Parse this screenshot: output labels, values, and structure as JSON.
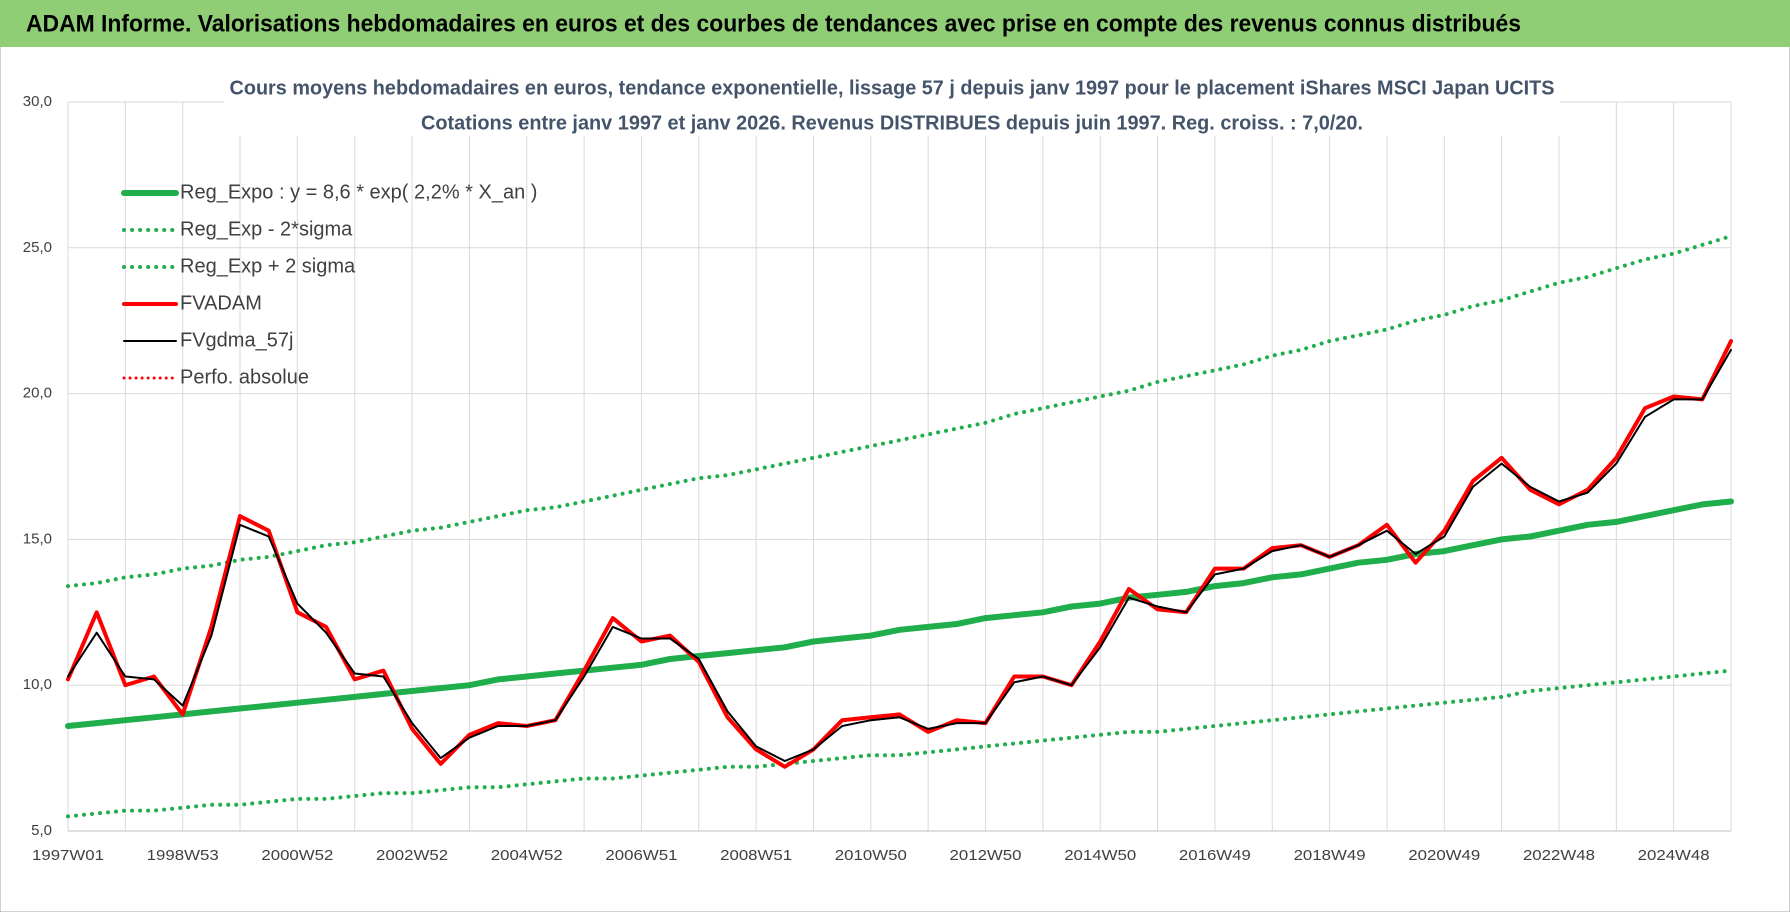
{
  "header": {
    "title": "ADAM Informe. Valorisations hebdomadaires en euros et des courbes de tendances avec prise en compte des revenus connus distribués"
  },
  "chart_data": {
    "type": "line",
    "title": "Cours moyens hebdomadaires en euros, tendance exponentielle, lissage 57 j depuis janv 1997 pour le placement iShares MSCI Japan UCITS",
    "subtitle": "Cotations entre janv 1997 et janv 2026. Revenus DISTRIBUES depuis juin 1997. Reg. croiss. : 7,0/20.",
    "categories": [
      "1997W01",
      null,
      null,
      null,
      "1998W53",
      null,
      null,
      null,
      "2000W52",
      null,
      null,
      null,
      "2002W52",
      null,
      null,
      null,
      "2004W52",
      null,
      null,
      null,
      "2006W51",
      null,
      null,
      null,
      "2008W51",
      null,
      null,
      null,
      "2010W50",
      null,
      null,
      null,
      "2012W50",
      null,
      null,
      null,
      "2014W50",
      null,
      null,
      null,
      "2016W49",
      null,
      null,
      null,
      "2018W49",
      null,
      null,
      null,
      "2020W49",
      null,
      null,
      null,
      "2022W48",
      null,
      null,
      null,
      "2024W48",
      null,
      null
    ],
    "ylim": [
      5,
      30
    ],
    "yticks": [
      {
        "value": 5,
        "label": "5,0"
      },
      {
        "value": 10,
        "label": "10,0"
      },
      {
        "value": 15,
        "label": "15,0"
      },
      {
        "value": 20,
        "label": "20,0"
      },
      {
        "value": 25,
        "label": "25,0"
      },
      {
        "value": 30,
        "label": "30,0"
      }
    ],
    "grid": true,
    "legend": "top-left",
    "series": [
      {
        "name": "Reg_Expo : y = 8,6 * exp( 2,2% *  X_an )",
        "color": "#1fae4b",
        "style": "solid",
        "width": 6,
        "values": [
          8.6,
          8.7,
          8.8,
          8.9,
          9.0,
          9.1,
          9.2,
          9.3,
          9.4,
          9.5,
          9.6,
          9.7,
          9.8,
          9.9,
          10.0,
          10.2,
          10.3,
          10.4,
          10.5,
          10.6,
          10.7,
          10.9,
          11.0,
          11.1,
          11.2,
          11.3,
          11.5,
          11.6,
          11.7,
          11.9,
          12.0,
          12.1,
          12.3,
          12.4,
          12.5,
          12.7,
          12.8,
          13.0,
          13.1,
          13.2,
          13.4,
          13.5,
          13.7,
          13.8,
          14.0,
          14.2,
          14.3,
          14.5,
          14.6,
          14.8,
          15.0,
          15.1,
          15.3,
          15.5,
          15.6,
          15.8,
          16.0,
          16.2,
          16.3
        ]
      },
      {
        "name": "Reg_Exp - 2*sigma",
        "color": "#1fae4b",
        "style": "dotted",
        "width": 4,
        "values": [
          5.5,
          5.6,
          5.7,
          5.7,
          5.8,
          5.9,
          5.9,
          6.0,
          6.1,
          6.1,
          6.2,
          6.3,
          6.3,
          6.4,
          6.5,
          6.5,
          6.6,
          6.7,
          6.8,
          6.8,
          6.9,
          7.0,
          7.1,
          7.2,
          7.2,
          7.3,
          7.4,
          7.5,
          7.6,
          7.6,
          7.7,
          7.8,
          7.9,
          8.0,
          8.1,
          8.2,
          8.3,
          8.4,
          8.4,
          8.5,
          8.6,
          8.7,
          8.8,
          8.9,
          9.0,
          9.1,
          9.2,
          9.3,
          9.4,
          9.5,
          9.6,
          9.8,
          9.9,
          10.0,
          10.1,
          10.2,
          10.3,
          10.4,
          10.5
        ]
      },
      {
        "name": "Reg_Exp + 2 sigma",
        "color": "#1fae4b",
        "style": "dotted",
        "width": 4,
        "values": [
          13.4,
          13.5,
          13.7,
          13.8,
          14.0,
          14.1,
          14.3,
          14.4,
          14.6,
          14.8,
          14.9,
          15.1,
          15.3,
          15.4,
          15.6,
          15.8,
          16.0,
          16.1,
          16.3,
          16.5,
          16.7,
          16.9,
          17.1,
          17.2,
          17.4,
          17.6,
          17.8,
          18.0,
          18.2,
          18.4,
          18.6,
          18.8,
          19.0,
          19.3,
          19.5,
          19.7,
          19.9,
          20.1,
          20.4,
          20.6,
          20.8,
          21.0,
          21.3,
          21.5,
          21.8,
          22.0,
          22.2,
          22.5,
          22.7,
          23.0,
          23.2,
          23.5,
          23.8,
          24.0,
          24.3,
          24.6,
          24.8,
          25.1,
          25.4
        ]
      },
      {
        "name": "Perfo. absolue",
        "color": "#ff0000",
        "style": "dotted",
        "width": 3,
        "values": [
          10.2,
          12.5,
          10.0,
          10.3,
          9.0,
          12.0,
          15.8,
          15.3,
          12.5,
          12.0,
          10.2,
          10.5,
          8.5,
          7.3,
          8.3,
          8.7,
          8.6,
          8.8,
          10.5,
          12.3,
          11.5,
          11.7,
          10.8,
          8.9,
          7.8,
          7.2,
          7.8,
          8.8,
          8.9,
          9.0,
          8.4,
          8.8,
          8.7,
          10.3,
          10.3,
          10.0,
          11.5,
          13.3,
          12.6,
          12.5,
          14.0,
          14.0,
          14.7,
          14.8,
          14.4,
          14.8,
          15.5,
          14.2,
          15.3,
          17.0,
          17.8,
          16.7,
          16.2,
          16.7,
          17.8,
          19.5,
          19.9,
          19.8,
          21.8
        ]
      },
      {
        "name": "FVADAM",
        "color": "#ff0000",
        "style": "solid",
        "width": 4,
        "values": [
          10.2,
          12.5,
          10.0,
          10.3,
          9.0,
          12.0,
          15.8,
          15.3,
          12.5,
          12.0,
          10.2,
          10.5,
          8.5,
          7.3,
          8.3,
          8.7,
          8.6,
          8.8,
          10.5,
          12.3,
          11.5,
          11.7,
          10.8,
          8.9,
          7.8,
          7.2,
          7.8,
          8.8,
          8.9,
          9.0,
          8.4,
          8.8,
          8.7,
          10.3,
          10.3,
          10.0,
          11.5,
          13.3,
          12.6,
          12.5,
          14.0,
          14.0,
          14.7,
          14.8,
          14.4,
          14.8,
          15.5,
          14.2,
          15.3,
          17.0,
          17.8,
          16.7,
          16.2,
          16.7,
          17.8,
          19.5,
          19.9,
          19.8,
          21.8
        ]
      },
      {
        "name": "FVgdma_57j",
        "color": "#000000",
        "style": "solid",
        "width": 2,
        "values": [
          10.3,
          11.8,
          10.3,
          10.2,
          9.3,
          11.7,
          15.5,
          15.1,
          12.8,
          11.8,
          10.4,
          10.3,
          8.7,
          7.5,
          8.2,
          8.6,
          8.6,
          8.8,
          10.3,
          12.0,
          11.6,
          11.6,
          10.9,
          9.1,
          7.9,
          7.4,
          7.8,
          8.6,
          8.8,
          8.9,
          8.5,
          8.7,
          8.7,
          10.1,
          10.3,
          10.0,
          11.3,
          13.0,
          12.7,
          12.5,
          13.8,
          14.0,
          14.6,
          14.8,
          14.4,
          14.8,
          15.3,
          14.5,
          15.1,
          16.8,
          17.6,
          16.8,
          16.3,
          16.6,
          17.6,
          19.2,
          19.8,
          19.8,
          21.5
        ]
      }
    ]
  }
}
